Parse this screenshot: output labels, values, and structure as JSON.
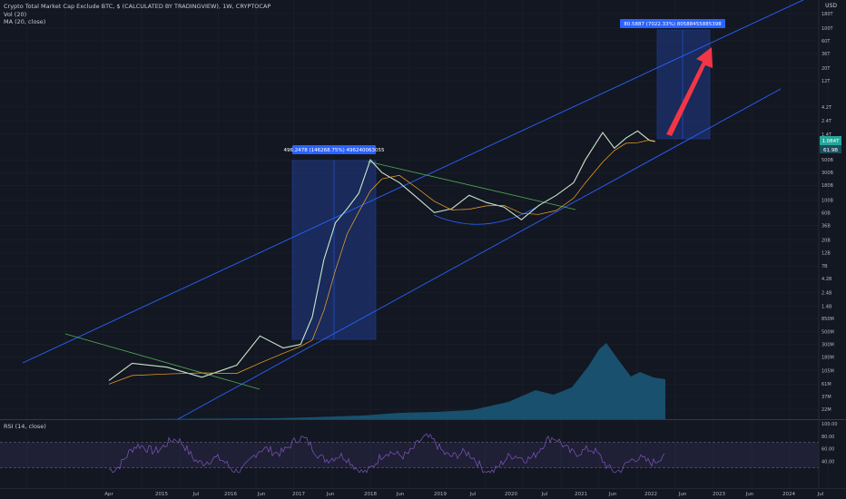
{
  "header": {
    "title": "Crypto Total Market Cap Exclude BTC, $ (CALCULATED BY TRADINGVIEW), 1W, CRYPTOCAP",
    "vol_label": "Vol (20)",
    "ma_label": "MA (20, close)",
    "rsi_label": "RSI (14, close)",
    "currency": "USD"
  },
  "colors": {
    "background": "#131722",
    "channel": "#2962ff",
    "trend": "#4caf50",
    "candle": "#c8e6c9",
    "ma": "#f9a825",
    "volume": "#1a5a7a",
    "measure_box": "#1e3a8a",
    "arrow": "#f23645",
    "rsi_line": "#7e57c2"
  },
  "chart_data": {
    "type": "line",
    "title": "Crypto Total Market Cap Exclude BTC, $ (CALCULATED BY TRADINGVIEW)",
    "y_scale": "log",
    "x_ticks": [
      "Apr",
      "2015",
      "Jul",
      "2016",
      "Jun",
      "2017",
      "Jun",
      "2018",
      "Jun",
      "2019",
      "Jul",
      "2020",
      "Jul",
      "2021",
      "Jun",
      "2022",
      "Jun",
      "2023",
      "Jun",
      "2024",
      "Jul"
    ],
    "y_ticks": [
      "180T",
      "100T",
      "60T",
      "36T",
      "20T",
      "12T",
      "4.2T",
      "2.4T",
      "1.4T",
      "500B",
      "300B",
      "180B",
      "100B",
      "60B",
      "36B",
      "20B",
      "12B",
      "7B",
      "4.2B",
      "2.4B",
      "1.4B",
      "850M",
      "500M",
      "300M",
      "180M",
      "105M",
      "61M",
      "37M",
      "22M"
    ],
    "price_path": [
      [
        "2014-04",
        70000000
      ],
      [
        "2014-08",
        140000000
      ],
      [
        "2015-02",
        120000000
      ],
      [
        "2015-08",
        80000000
      ],
      [
        "2016-02",
        130000000
      ],
      [
        "2016-06",
        420000000
      ],
      [
        "2016-10",
        260000000
      ],
      [
        "2017-01",
        300000000
      ],
      [
        "2017-03",
        900000000
      ],
      [
        "2017-05",
        9000000000
      ],
      [
        "2017-07",
        40000000000
      ],
      [
        "2017-09",
        70000000000
      ],
      [
        "2017-11",
        130000000000
      ],
      [
        "2018-01",
        500000000000
      ],
      [
        "2018-03",
        300000000000
      ],
      [
        "2018-06",
        200000000000
      ],
      [
        "2018-09",
        110000000000
      ],
      [
        "2018-12",
        60000000000
      ],
      [
        "2019-03",
        70000000000
      ],
      [
        "2019-06",
        120000000000
      ],
      [
        "2019-09",
        90000000000
      ],
      [
        "2019-12",
        75000000000
      ],
      [
        "2020-03",
        45000000000
      ],
      [
        "2020-06",
        80000000000
      ],
      [
        "2020-09",
        120000000000
      ],
      [
        "2020-12",
        200000000000
      ],
      [
        "2021-02",
        500000000000
      ],
      [
        "2021-05",
        1500000000000
      ],
      [
        "2021-07",
        800000000000
      ],
      [
        "2021-09",
        1200000000000
      ],
      [
        "2021-11",
        1600000000000
      ],
      [
        "2022-01",
        1100000000000
      ],
      [
        "2022-02",
        1050000000000
      ]
    ],
    "annotations": [
      "496.2478 (146268.75%) 496240063055",
      "80.5887 (7022.33%) 80588455885398"
    ],
    "current_values": [
      "1.084T",
      "61.9B"
    ],
    "rsi_ticks": [
      "100.00",
      "80.00",
      "60.00",
      "40.00"
    ],
    "rsi_range": [
      0,
      100
    ],
    "rsi_bands": [
      70,
      30
    ]
  }
}
